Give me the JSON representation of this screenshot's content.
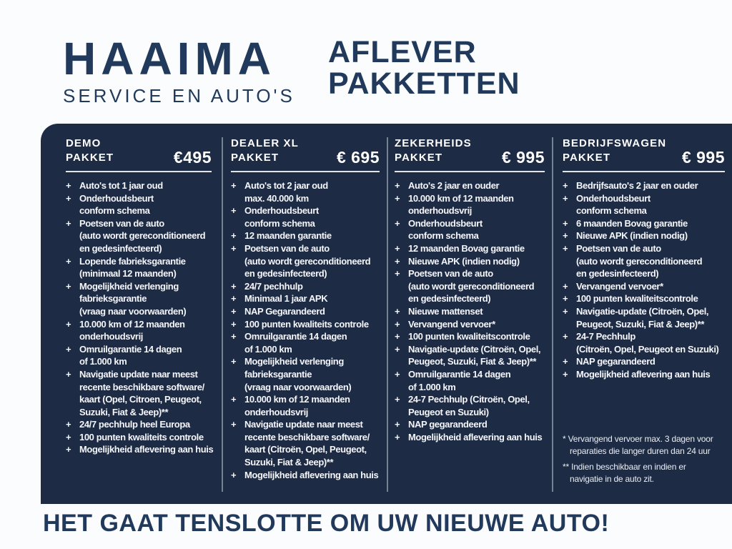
{
  "brand": {
    "name": "HAAIMA",
    "subtitle": "SERVICE EN AUTO'S"
  },
  "page_title": {
    "line1": "AFLEVER",
    "line2": "PAKKETTEN"
  },
  "bullet": "+",
  "colors": {
    "navy_text": "#213a5c",
    "panel_bg": "#1e2b44",
    "panel_text": "#ffffff"
  },
  "packages": [
    {
      "title_line1": "DEMO",
      "title_line2": "PAKKET",
      "price": "€495",
      "items": [
        [
          "Auto's tot 1 jaar oud"
        ],
        [
          "Onderhoudsbeurt",
          "conform schema"
        ],
        [
          "Poetsen van de auto",
          "(auto wordt gereconditioneerd",
          "en gedesinfecteerd)"
        ],
        [
          "Lopende fabrieksgarantie",
          "(minimaal 12 maanden)"
        ],
        [
          "Mogelijkheid verlenging",
          "fabrieksgarantie",
          "(vraag naar voorwaarden)"
        ],
        [
          "10.000 km of 12 maanden",
          "onderhoudsvrij"
        ],
        [
          "Omruilgarantie 14 dagen",
          "of 1.000 km"
        ],
        [
          "Navigatie update naar meest",
          "recente beschikbare software/",
          "kaart (Opel, Citroen, Peugeot,",
          "Suzuki, Fiat & Jeep)**"
        ],
        [
          "24/7 pechhulp heel Europa"
        ],
        [
          "100 punten kwaliteits controle"
        ],
        [
          "Mogelijkheid aflevering aan huis"
        ]
      ]
    },
    {
      "title_line1": "DEALER XL",
      "title_line2": "PAKKET",
      "price": "€ 695",
      "items": [
        [
          "Auto's tot 2 jaar oud",
          "max. 40.000 km"
        ],
        [
          "Onderhoudsbeurt",
          "conform schema"
        ],
        [
          "12 maanden garantie"
        ],
        [
          "Poetsen van de auto",
          "(auto wordt gereconditioneerd",
          "en gedesinfecteerd)"
        ],
        [
          "24/7 pechhulp"
        ],
        [
          "Minimaal 1 jaar APK"
        ],
        [
          "NAP Gegarandeerd"
        ],
        [
          "100 punten kwaliteits controle"
        ],
        [
          "Omruilgarantie 14 dagen",
          "of 1.000 km"
        ],
        [
          "Mogelijkheid verlenging",
          "fabrieksgarantie",
          "(vraag naar voorwaarden)"
        ],
        [
          "10.000 km of 12 maanden",
          "onderhoudsvrij"
        ],
        [
          "Navigatie update naar meest",
          "recente beschikbare software/",
          "kaart (Citroën, Opel, Peugeot,",
          "Suzuki, Fiat & Jeep)**"
        ],
        [
          "Mogelijkheid aflevering aan huis"
        ]
      ]
    },
    {
      "title_line1": "ZEKERHEIDS",
      "title_line2": "PAKKET",
      "price": "€ 995",
      "items": [
        [
          "Auto's 2 jaar en ouder"
        ],
        [
          "10.000 km of 12 maanden",
          "onderhoudsvrij"
        ],
        [
          "Onderhoudsbeurt",
          "conform schema"
        ],
        [
          "12 maanden Bovag garantie"
        ],
        [
          "Nieuwe APK (indien nodig)"
        ],
        [
          "Poetsen van de auto",
          "(auto wordt gereconditioneerd",
          "en gedesinfecteerd)"
        ],
        [
          "Nieuwe mattenset"
        ],
        [
          "Vervangend vervoer*"
        ],
        [
          "100 punten kwaliteitscontrole"
        ],
        [
          "Navigatie-update (Citroën, Opel,",
          "Peugeot, Suzuki, Fiat & Jeep)**"
        ],
        [
          "Omruilgarantie 14 dagen",
          "of 1.000 km"
        ],
        [
          "24-7 Pechhulp (Citroën, Opel,",
          "Peugeot en Suzuki)"
        ],
        [
          "NAP gegarandeerd"
        ],
        [
          "Mogelijkheid aflevering aan huis"
        ]
      ]
    },
    {
      "title_line1": "BEDRIJFSWAGEN",
      "title_line2": "PAKKET",
      "price": "€ 995",
      "items": [
        [
          "Bedrijfsauto's 2 jaar en ouder"
        ],
        [
          "Onderhoudsbeurt",
          "conform schema"
        ],
        [
          "6 maanden Bovag garantie"
        ],
        [
          "Nieuwe APK (indien nodig)"
        ],
        [
          "Poetsen van de auto",
          "(auto wordt gereconditioneerd",
          "en gedesinfecteerd)"
        ],
        [
          "Vervangend vervoer*"
        ],
        [
          "100 punten kwaliteitscontrole"
        ],
        [
          "Navigatie-update (Citroën, Opel,",
          "Peugeot, Suzuki, Fiat & Jeep)**"
        ],
        [
          "24-7 Pechhulp",
          "(Citroën, Opel, Peugeot en Suzuki)"
        ],
        [
          "NAP gegarandeerd"
        ],
        [
          "Mogelijkheid aflevering aan huis"
        ]
      ]
    }
  ],
  "footnotes": [
    [
      "* Vervangend vervoer max. 3 dagen voor",
      "reparaties die langer duren dan 24 uur"
    ],
    [
      "** Indien beschikbaar en indien er",
      "navigatie in de auto zit."
    ]
  ],
  "footer": {
    "tagline": "HET GAAT TENSLOTTE OM UW NIEUWE AUTO!"
  }
}
